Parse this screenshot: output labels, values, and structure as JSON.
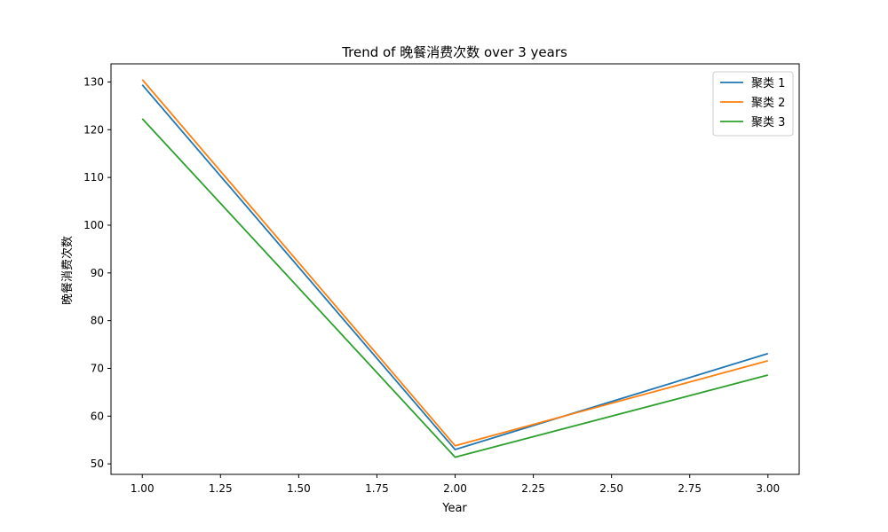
{
  "chart_data": {
    "type": "line",
    "title": "Trend of 晚餐消费次数 over 3 years",
    "xlabel": "Year",
    "ylabel": "晚餐消费次数",
    "xlim": [
      0.9,
      3.1
    ],
    "ylim": [
      47.8,
      133.8
    ],
    "xticks": [
      1.0,
      1.25,
      1.5,
      1.75,
      2.0,
      2.25,
      2.5,
      2.75,
      3.0
    ],
    "xtick_labels": [
      "1.00",
      "1.25",
      "1.50",
      "1.75",
      "2.00",
      "2.25",
      "2.50",
      "2.75",
      "3.00"
    ],
    "yticks": [
      50,
      60,
      70,
      80,
      90,
      100,
      110,
      120,
      130
    ],
    "ytick_labels": [
      "50",
      "60",
      "70",
      "80",
      "90",
      "100",
      "110",
      "120",
      "130"
    ],
    "grid": false,
    "legend_position": "top-right",
    "x": [
      1,
      2,
      3
    ],
    "series": [
      {
        "name": "聚类 1",
        "color": "#1f77b4",
        "values": [
          129.4,
          53.0,
          73.1
        ]
      },
      {
        "name": "聚类 2",
        "color": "#ff7f0e",
        "values": [
          130.5,
          53.8,
          71.6
        ]
      },
      {
        "name": "聚类 3",
        "color": "#2ca02c",
        "values": [
          122.3,
          51.4,
          68.6
        ]
      }
    ]
  }
}
